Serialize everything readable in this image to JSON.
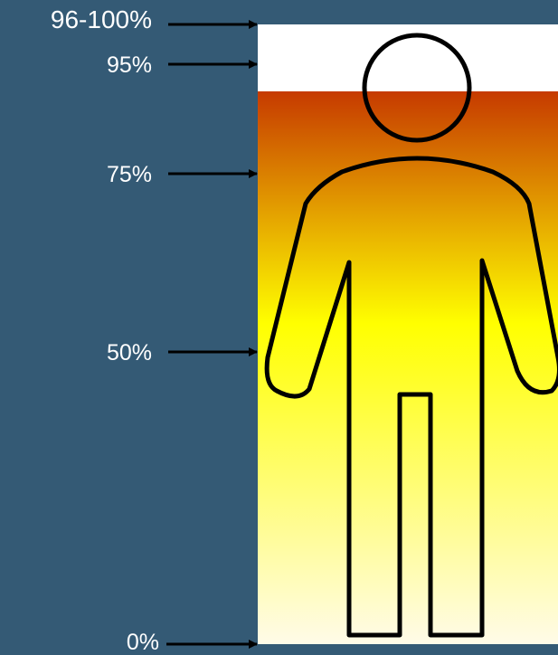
{
  "colors": {
    "background": "#345a75",
    "top_band": "#ffffff",
    "gradient_top": "#c63a00",
    "gradient_mid": "#ffff00",
    "gradient_bottom": "#fffbe8",
    "arrow": "#000000",
    "label_text": "#ffffff",
    "figure_outline": "#000000"
  },
  "scale": {
    "markers": [
      {
        "label": "96-100%"
      },
      {
        "label": "95%"
      },
      {
        "label": "75%"
      },
      {
        "label": "50%"
      },
      {
        "label": "0%"
      }
    ]
  },
  "figure": {
    "icon": "person-outline-icon"
  }
}
